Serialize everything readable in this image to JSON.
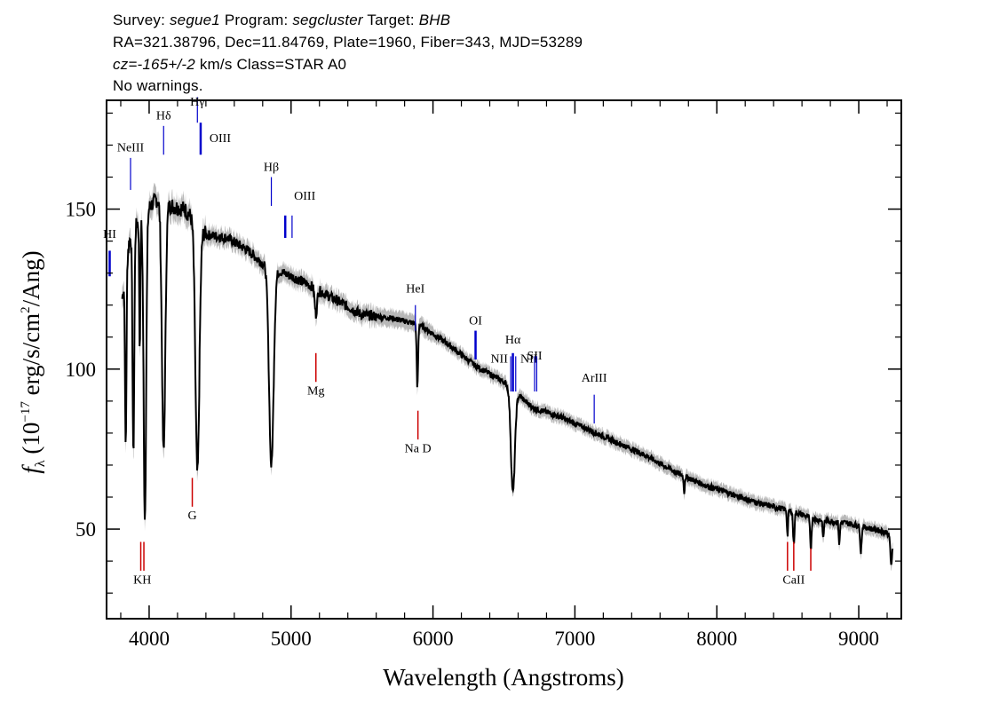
{
  "header": {
    "line1_prefix": "Survey: ",
    "survey": "segue1",
    "program_label": " Program: ",
    "program": "segcluster",
    "target_label": " Target: ",
    "target": "BHB",
    "line2": "RA=321.38796, Dec=11.84769, Plate=1960, Fiber=343, MJD=53289",
    "cz_value": "cz=-165+/-2",
    "line3_rest": " km/s Class=STAR A0",
    "line4": "No warnings."
  },
  "chart_data": {
    "type": "line",
    "xlabel": "Wavelength (Angstroms)",
    "ylabel": "f_λ (10^-17 erg/s/cm^2/Ang)",
    "xlim": [
      3700,
      9300
    ],
    "ylim": [
      22,
      184
    ],
    "x_ticks": [
      4000,
      5000,
      6000,
      7000,
      8000,
      9000
    ],
    "y_ticks": [
      50,
      100,
      150
    ],
    "colors": {
      "flux": "#000000",
      "error_band": "#b8b8b8",
      "emission_lines": "#0000cc",
      "absorption_lines": "#cc0000"
    },
    "continuum": [
      [
        3810,
        122
      ],
      [
        3860,
        140
      ],
      [
        3920,
        146
      ],
      [
        3990,
        150
      ],
      [
        4050,
        153
      ],
      [
        4150,
        151
      ],
      [
        4250,
        150
      ],
      [
        4400,
        142
      ],
      [
        4550,
        141
      ],
      [
        4700,
        137
      ],
      [
        4800,
        133
      ],
      [
        4950,
        130
      ],
      [
        5100,
        127
      ],
      [
        5300,
        122
      ],
      [
        5500,
        117
      ],
      [
        5700,
        116
      ],
      [
        5900,
        114
      ],
      [
        6100,
        108
      ],
      [
        6300,
        101
      ],
      [
        6500,
        96
      ],
      [
        6700,
        88
      ],
      [
        6900,
        85
      ],
      [
        7100,
        81
      ],
      [
        7300,
        77
      ],
      [
        7500,
        73
      ],
      [
        7700,
        68
      ],
      [
        7900,
        64
      ],
      [
        8100,
        61
      ],
      [
        8300,
        58
      ],
      [
        8500,
        56
      ],
      [
        8700,
        53
      ],
      [
        8900,
        52
      ],
      [
        9100,
        50
      ],
      [
        9200,
        49
      ],
      [
        9240,
        45
      ]
    ],
    "absorption_features": [
      {
        "x": 3835,
        "depth": 55,
        "width": 5
      },
      {
        "x": 3889,
        "depth": 70,
        "width": 6
      },
      {
        "x": 3934,
        "depth": 40,
        "width": 4
      },
      {
        "x": 3970,
        "depth": 95,
        "width": 9
      },
      {
        "x": 4102,
        "depth": 78,
        "width": 12
      },
      {
        "x": 4340,
        "depth": 78,
        "width": 14
      },
      {
        "x": 4861,
        "depth": 62,
        "width": 16
      },
      {
        "x": 5175,
        "depth": 8,
        "width": 8
      },
      {
        "x": 5890,
        "depth": 20,
        "width": 5
      },
      {
        "x": 6563,
        "depth": 32,
        "width": 14
      },
      {
        "x": 7770,
        "depth": 5,
        "width": 4
      },
      {
        "x": 8498,
        "depth": 8,
        "width": 4
      },
      {
        "x": 8542,
        "depth": 10,
        "width": 5
      },
      {
        "x": 8662,
        "depth": 10,
        "width": 5
      },
      {
        "x": 8750,
        "depth": 6,
        "width": 4
      },
      {
        "x": 8863,
        "depth": 7,
        "width": 4
      },
      {
        "x": 9015,
        "depth": 8,
        "width": 5
      },
      {
        "x": 9229,
        "depth": 8,
        "width": 5
      }
    ],
    "emission_lines": [
      {
        "label": "HI",
        "x": 3722,
        "y1": 129,
        "y2": 137,
        "label_y": 141,
        "thick": true
      },
      {
        "label": "NeIII",
        "x": 3869,
        "y1": 156,
        "y2": 166,
        "label_y": 168
      },
      {
        "label": "Hδ",
        "x": 4102,
        "y1": 167,
        "y2": 176,
        "label_y": 178
      },
      {
        "label": "Hγ",
        "x": 4340,
        "y1": 177,
        "y2": 185,
        "label_y": 186
      },
      {
        "label": "OIII",
        "x": 4363,
        "y1": 167,
        "y2": 177,
        "label_y": 171,
        "label_x_offset": 22,
        "thick": true
      },
      {
        "label": "Hβ",
        "x": 4861,
        "y1": 151,
        "y2": 160,
        "label_y": 162
      },
      {
        "label": "OIII",
        "x": 4959,
        "y1": 141,
        "y2": 148,
        "label_y": 153,
        "label_x_offset": 22,
        "thick": true
      },
      {
        "label": "",
        "x": 5007,
        "y1": 141,
        "y2": 148
      },
      {
        "label": "HeI",
        "x": 5876,
        "y1": 112,
        "y2": 120,
        "label_y": 124
      },
      {
        "label": "OI",
        "x": 6300,
        "y1": 103,
        "y2": 112,
        "label_y": 114,
        "thick": true
      },
      {
        "label": "NII",
        "x": 6548,
        "y1": 93,
        "y2": 104,
        "label_y": 102,
        "label_x_offset": -13
      },
      {
        "label": "Hα",
        "x": 6563,
        "y1": 93,
        "y2": 105,
        "label_y": 108,
        "thick": true
      },
      {
        "label": "NII",
        "x": 6583,
        "y1": 93,
        "y2": 104,
        "label_y": 102,
        "label_x_offset": 15
      },
      {
        "label": "SII",
        "x": 6716,
        "y1": 93,
        "y2": 104,
        "label_y": 103
      },
      {
        "label": "",
        "x": 6731,
        "y1": 93,
        "y2": 104
      },
      {
        "label": "ArIII",
        "x": 7136,
        "y1": 83,
        "y2": 92,
        "label_y": 96
      }
    ],
    "absorption_lines": [
      {
        "label": "KH",
        "x": 3952,
        "y1": 37,
        "y2": 46,
        "label_y": 33,
        "pair_dx": 22
      },
      {
        "label": "G",
        "x": 4304,
        "y1": 57,
        "y2": 66,
        "label_y": 53
      },
      {
        "label": "Mg",
        "x": 5175,
        "y1": 96,
        "y2": 105,
        "label_y": 92
      },
      {
        "label": "Na D",
        "x": 5894,
        "y1": 78,
        "y2": 87,
        "label_y": 74
      },
      {
        "label": "CaII",
        "x": 8542,
        "y1": 37,
        "y2": 46,
        "label_y": 33,
        "triple": [
          8498,
          8542,
          8662
        ]
      }
    ]
  }
}
